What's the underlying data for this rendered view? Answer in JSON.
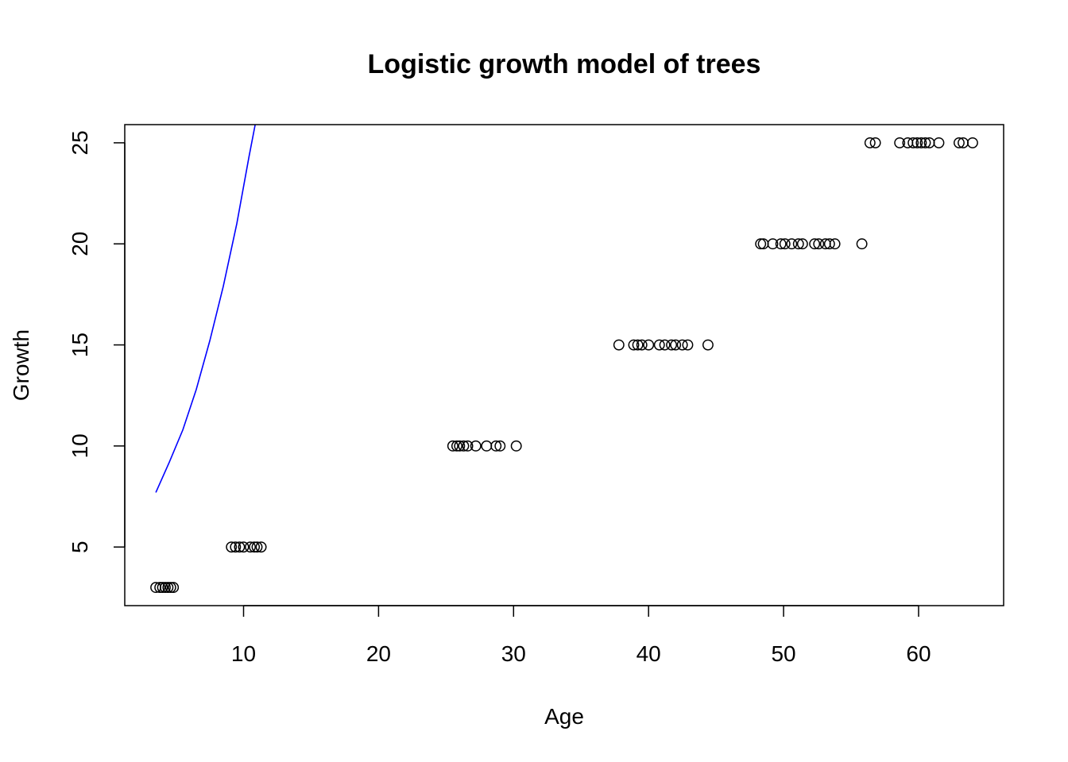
{
  "chart_data": {
    "type": "scatter",
    "title": "Logistic growth model of trees",
    "xlabel": "Age",
    "ylabel": "Growth",
    "xlim": [
      1.2,
      66.3
    ],
    "ylim": [
      2.1,
      25.9
    ],
    "xticks": [
      10,
      20,
      30,
      40,
      50,
      60
    ],
    "yticks": [
      5,
      10,
      15,
      20,
      25
    ],
    "grid": false,
    "legend": "none",
    "colors": {
      "points": "#000000",
      "curve": "#0000ff",
      "frame": "#000000"
    },
    "points": [
      {
        "x": 3.5,
        "y": 3
      },
      {
        "x": 3.8,
        "y": 3
      },
      {
        "x": 4.0,
        "y": 3
      },
      {
        "x": 4.2,
        "y": 3
      },
      {
        "x": 4.4,
        "y": 3
      },
      {
        "x": 4.6,
        "y": 3
      },
      {
        "x": 4.8,
        "y": 3
      },
      {
        "x": 9.1,
        "y": 5
      },
      {
        "x": 9.4,
        "y": 5
      },
      {
        "x": 9.7,
        "y": 5
      },
      {
        "x": 10.0,
        "y": 5
      },
      {
        "x": 10.5,
        "y": 5
      },
      {
        "x": 10.8,
        "y": 5
      },
      {
        "x": 11.0,
        "y": 5
      },
      {
        "x": 11.3,
        "y": 5
      },
      {
        "x": 25.5,
        "y": 10
      },
      {
        "x": 25.8,
        "y": 10
      },
      {
        "x": 26.0,
        "y": 10
      },
      {
        "x": 26.3,
        "y": 10
      },
      {
        "x": 26.6,
        "y": 10
      },
      {
        "x": 27.2,
        "y": 10
      },
      {
        "x": 28.0,
        "y": 10
      },
      {
        "x": 28.7,
        "y": 10
      },
      {
        "x": 29.0,
        "y": 10
      },
      {
        "x": 30.2,
        "y": 10
      },
      {
        "x": 37.8,
        "y": 15
      },
      {
        "x": 38.9,
        "y": 15
      },
      {
        "x": 39.2,
        "y": 15
      },
      {
        "x": 39.5,
        "y": 15
      },
      {
        "x": 40.0,
        "y": 15
      },
      {
        "x": 40.8,
        "y": 15
      },
      {
        "x": 41.2,
        "y": 15
      },
      {
        "x": 41.7,
        "y": 15
      },
      {
        "x": 42.0,
        "y": 15
      },
      {
        "x": 42.5,
        "y": 15
      },
      {
        "x": 42.9,
        "y": 15
      },
      {
        "x": 44.4,
        "y": 15
      },
      {
        "x": 48.3,
        "y": 20
      },
      {
        "x": 48.5,
        "y": 20
      },
      {
        "x": 49.2,
        "y": 20
      },
      {
        "x": 49.8,
        "y": 20
      },
      {
        "x": 50.1,
        "y": 20
      },
      {
        "x": 50.6,
        "y": 20
      },
      {
        "x": 51.1,
        "y": 20
      },
      {
        "x": 51.4,
        "y": 20
      },
      {
        "x": 52.3,
        "y": 20
      },
      {
        "x": 52.6,
        "y": 20
      },
      {
        "x": 53.1,
        "y": 20
      },
      {
        "x": 53.4,
        "y": 20
      },
      {
        "x": 53.8,
        "y": 20
      },
      {
        "x": 55.8,
        "y": 20
      },
      {
        "x": 56.4,
        "y": 25
      },
      {
        "x": 56.8,
        "y": 25
      },
      {
        "x": 58.6,
        "y": 25
      },
      {
        "x": 59.2,
        "y": 25
      },
      {
        "x": 59.6,
        "y": 25
      },
      {
        "x": 59.9,
        "y": 25
      },
      {
        "x": 60.2,
        "y": 25
      },
      {
        "x": 60.5,
        "y": 25
      },
      {
        "x": 60.8,
        "y": 25
      },
      {
        "x": 61.5,
        "y": 25
      },
      {
        "x": 63.0,
        "y": 25
      },
      {
        "x": 63.3,
        "y": 25
      },
      {
        "x": 64.0,
        "y": 25
      }
    ],
    "curve": [
      {
        "x": 3.5,
        "y": 7.7
      },
      {
        "x": 4.5,
        "y": 9.2
      },
      {
        "x": 5.5,
        "y": 10.8
      },
      {
        "x": 6.5,
        "y": 12.8
      },
      {
        "x": 7.5,
        "y": 15.2
      },
      {
        "x": 8.5,
        "y": 17.9
      },
      {
        "x": 9.5,
        "y": 21.0
      },
      {
        "x": 10.4,
        "y": 24.3
      },
      {
        "x": 10.95,
        "y": 26.2
      }
    ]
  }
}
